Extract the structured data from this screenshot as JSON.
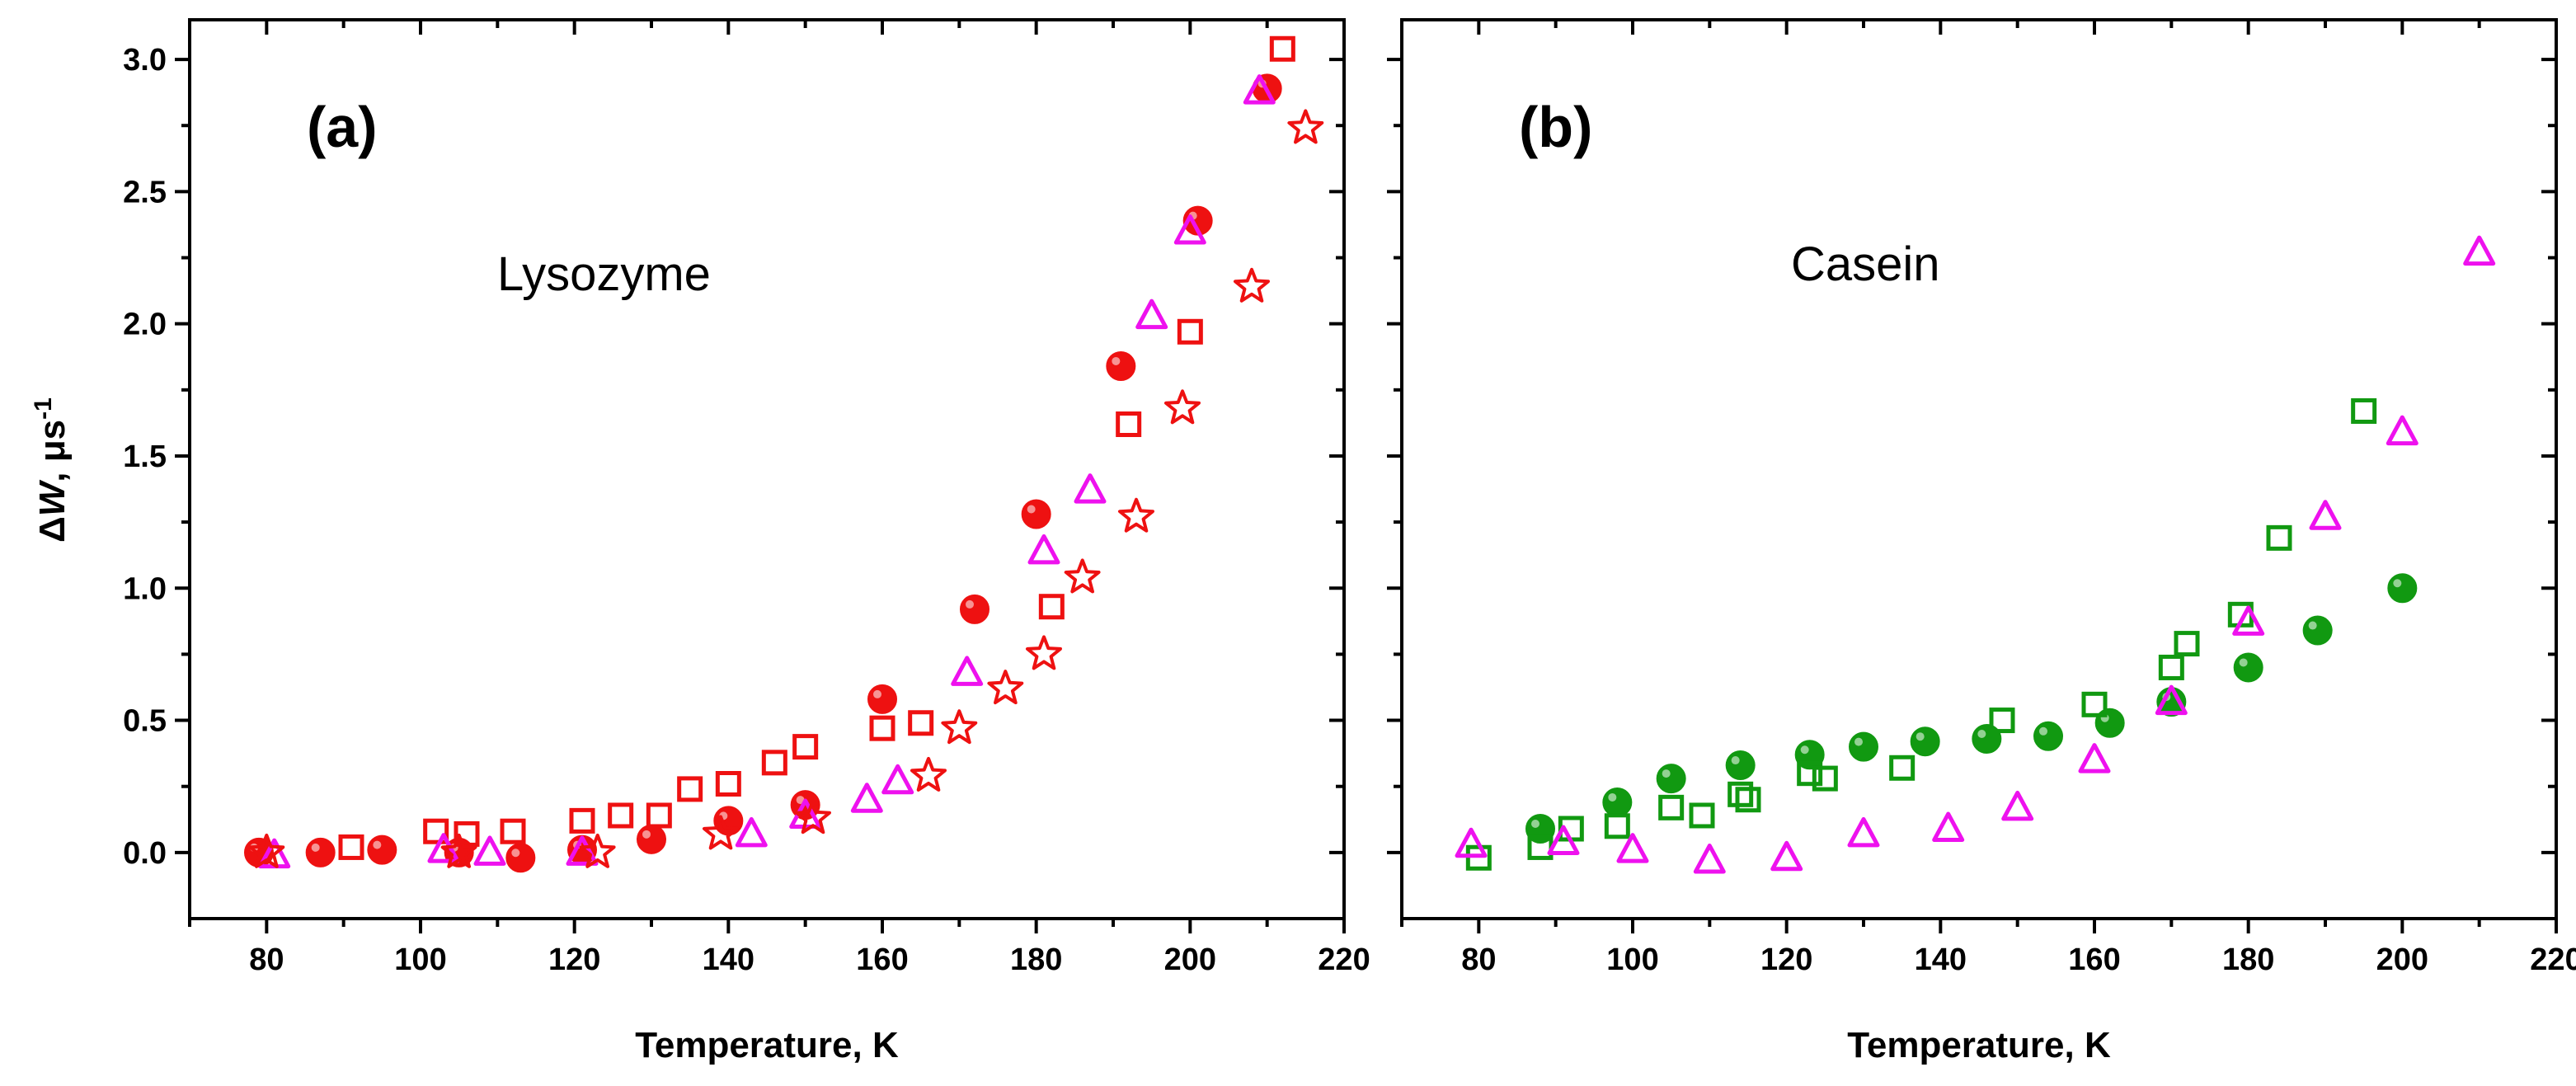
{
  "colors": {
    "red": "#ee1111",
    "magenta": "#ee11ee",
    "green": "#119911"
  },
  "chart_data": [
    {
      "type": "scatter",
      "panel_label": "(a)",
      "annotation": "Lysozyme",
      "xlabel": "Temperature, K",
      "ylabel": {
        "delta": "Δ",
        "var": "W",
        "unit": ", μs",
        "exp": "-1"
      },
      "xlim": [
        70,
        220
      ],
      "ylim": [
        -0.25,
        3.15
      ],
      "xticks": [
        "80",
        "100",
        "120",
        "140",
        "160",
        "180",
        "200",
        "220"
      ],
      "xtick_values": [
        80,
        100,
        120,
        140,
        160,
        180,
        200,
        220
      ],
      "yticks": [
        "0.0",
        "0.5",
        "1.0",
        "1.5",
        "2.0",
        "2.5",
        "3.0"
      ],
      "ytick_values": [
        0,
        0.5,
        1.0,
        1.5,
        2.0,
        2.5,
        3.0
      ],
      "series": [
        {
          "name": "filled circles",
          "marker": "filled-circle",
          "color": "red",
          "x": [
            79,
            87,
            95,
            105,
            113,
            121,
            130,
            140,
            150,
            160,
            172,
            180,
            191,
            201,
            210
          ],
          "y": [
            0.0,
            0.0,
            0.01,
            0.0,
            -0.02,
            0.01,
            0.05,
            0.12,
            0.18,
            0.58,
            0.92,
            1.28,
            1.84,
            2.39,
            2.89
          ]
        },
        {
          "name": "open squares",
          "marker": "open-square",
          "color": "red",
          "x": [
            91,
            102,
            106,
            112,
            121,
            126,
            131,
            135,
            140,
            146,
            150,
            160,
            165,
            182,
            192,
            200,
            212
          ],
          "y": [
            0.02,
            0.08,
            0.07,
            0.08,
            0.12,
            0.14,
            0.14,
            0.24,
            0.26,
            0.34,
            0.4,
            0.47,
            0.49,
            0.93,
            1.62,
            1.97,
            3.04
          ]
        },
        {
          "name": "open triangles",
          "marker": "open-triangle",
          "color": "magenta",
          "x": [
            81,
            103,
            109,
            121,
            143,
            150,
            158,
            162,
            171,
            181,
            187,
            195,
            200,
            209
          ],
          "y": [
            -0.01,
            0.01,
            0.0,
            0.0,
            0.07,
            0.14,
            0.2,
            0.27,
            0.68,
            1.14,
            1.37,
            2.03,
            2.35,
            2.88
          ]
        },
        {
          "name": "open stars",
          "marker": "open-star",
          "color": "red",
          "x": [
            80,
            105,
            123,
            139,
            151,
            166,
            170,
            176,
            181,
            186,
            193,
            199,
            208,
            215
          ],
          "y": [
            0.0,
            0.0,
            0.0,
            0.07,
            0.13,
            0.29,
            0.47,
            0.62,
            0.75,
            1.04,
            1.27,
            1.68,
            2.14,
            2.74
          ]
        }
      ]
    },
    {
      "type": "scatter",
      "panel_label": "(b)",
      "annotation": "Casein",
      "xlabel": "Temperature, K",
      "xlim": [
        70,
        220
      ],
      "ylim": [
        -0.25,
        3.15
      ],
      "xticks": [
        "80",
        "100",
        "120",
        "140",
        "160",
        "180",
        "200",
        "220"
      ],
      "xtick_values": [
        80,
        100,
        120,
        140,
        160,
        180,
        200,
        220
      ],
      "series": [
        {
          "name": "filled circles",
          "marker": "filled-circle",
          "color": "green",
          "x": [
            88,
            98,
            105,
            114,
            123,
            130,
            138,
            146,
            154,
            162,
            170,
            180,
            189,
            200
          ],
          "y": [
            0.09,
            0.19,
            0.28,
            0.33,
            0.37,
            0.4,
            0.42,
            0.43,
            0.44,
            0.49,
            0.57,
            0.7,
            0.84,
            1.0
          ]
        },
        {
          "name": "open squares",
          "marker": "open-square",
          "color": "green",
          "x": [
            80,
            88,
            92,
            98,
            105,
            109,
            114,
            115,
            123,
            125,
            135,
            148,
            160,
            170,
            172,
            179,
            184,
            195
          ],
          "y": [
            -0.02,
            0.02,
            0.09,
            0.1,
            0.17,
            0.14,
            0.22,
            0.2,
            0.3,
            0.28,
            0.32,
            0.5,
            0.56,
            0.7,
            0.79,
            0.9,
            1.19,
            1.67
          ]
        },
        {
          "name": "open triangles",
          "marker": "open-triangle",
          "color": "magenta",
          "x": [
            79,
            91,
            100,
            110,
            120,
            130,
            141,
            150,
            160,
            170,
            180,
            190,
            200,
            210
          ],
          "y": [
            0.03,
            0.04,
            0.01,
            -0.03,
            -0.02,
            0.07,
            0.09,
            0.17,
            0.35,
            0.57,
            0.87,
            1.27,
            1.59,
            2.27
          ]
        }
      ]
    }
  ]
}
